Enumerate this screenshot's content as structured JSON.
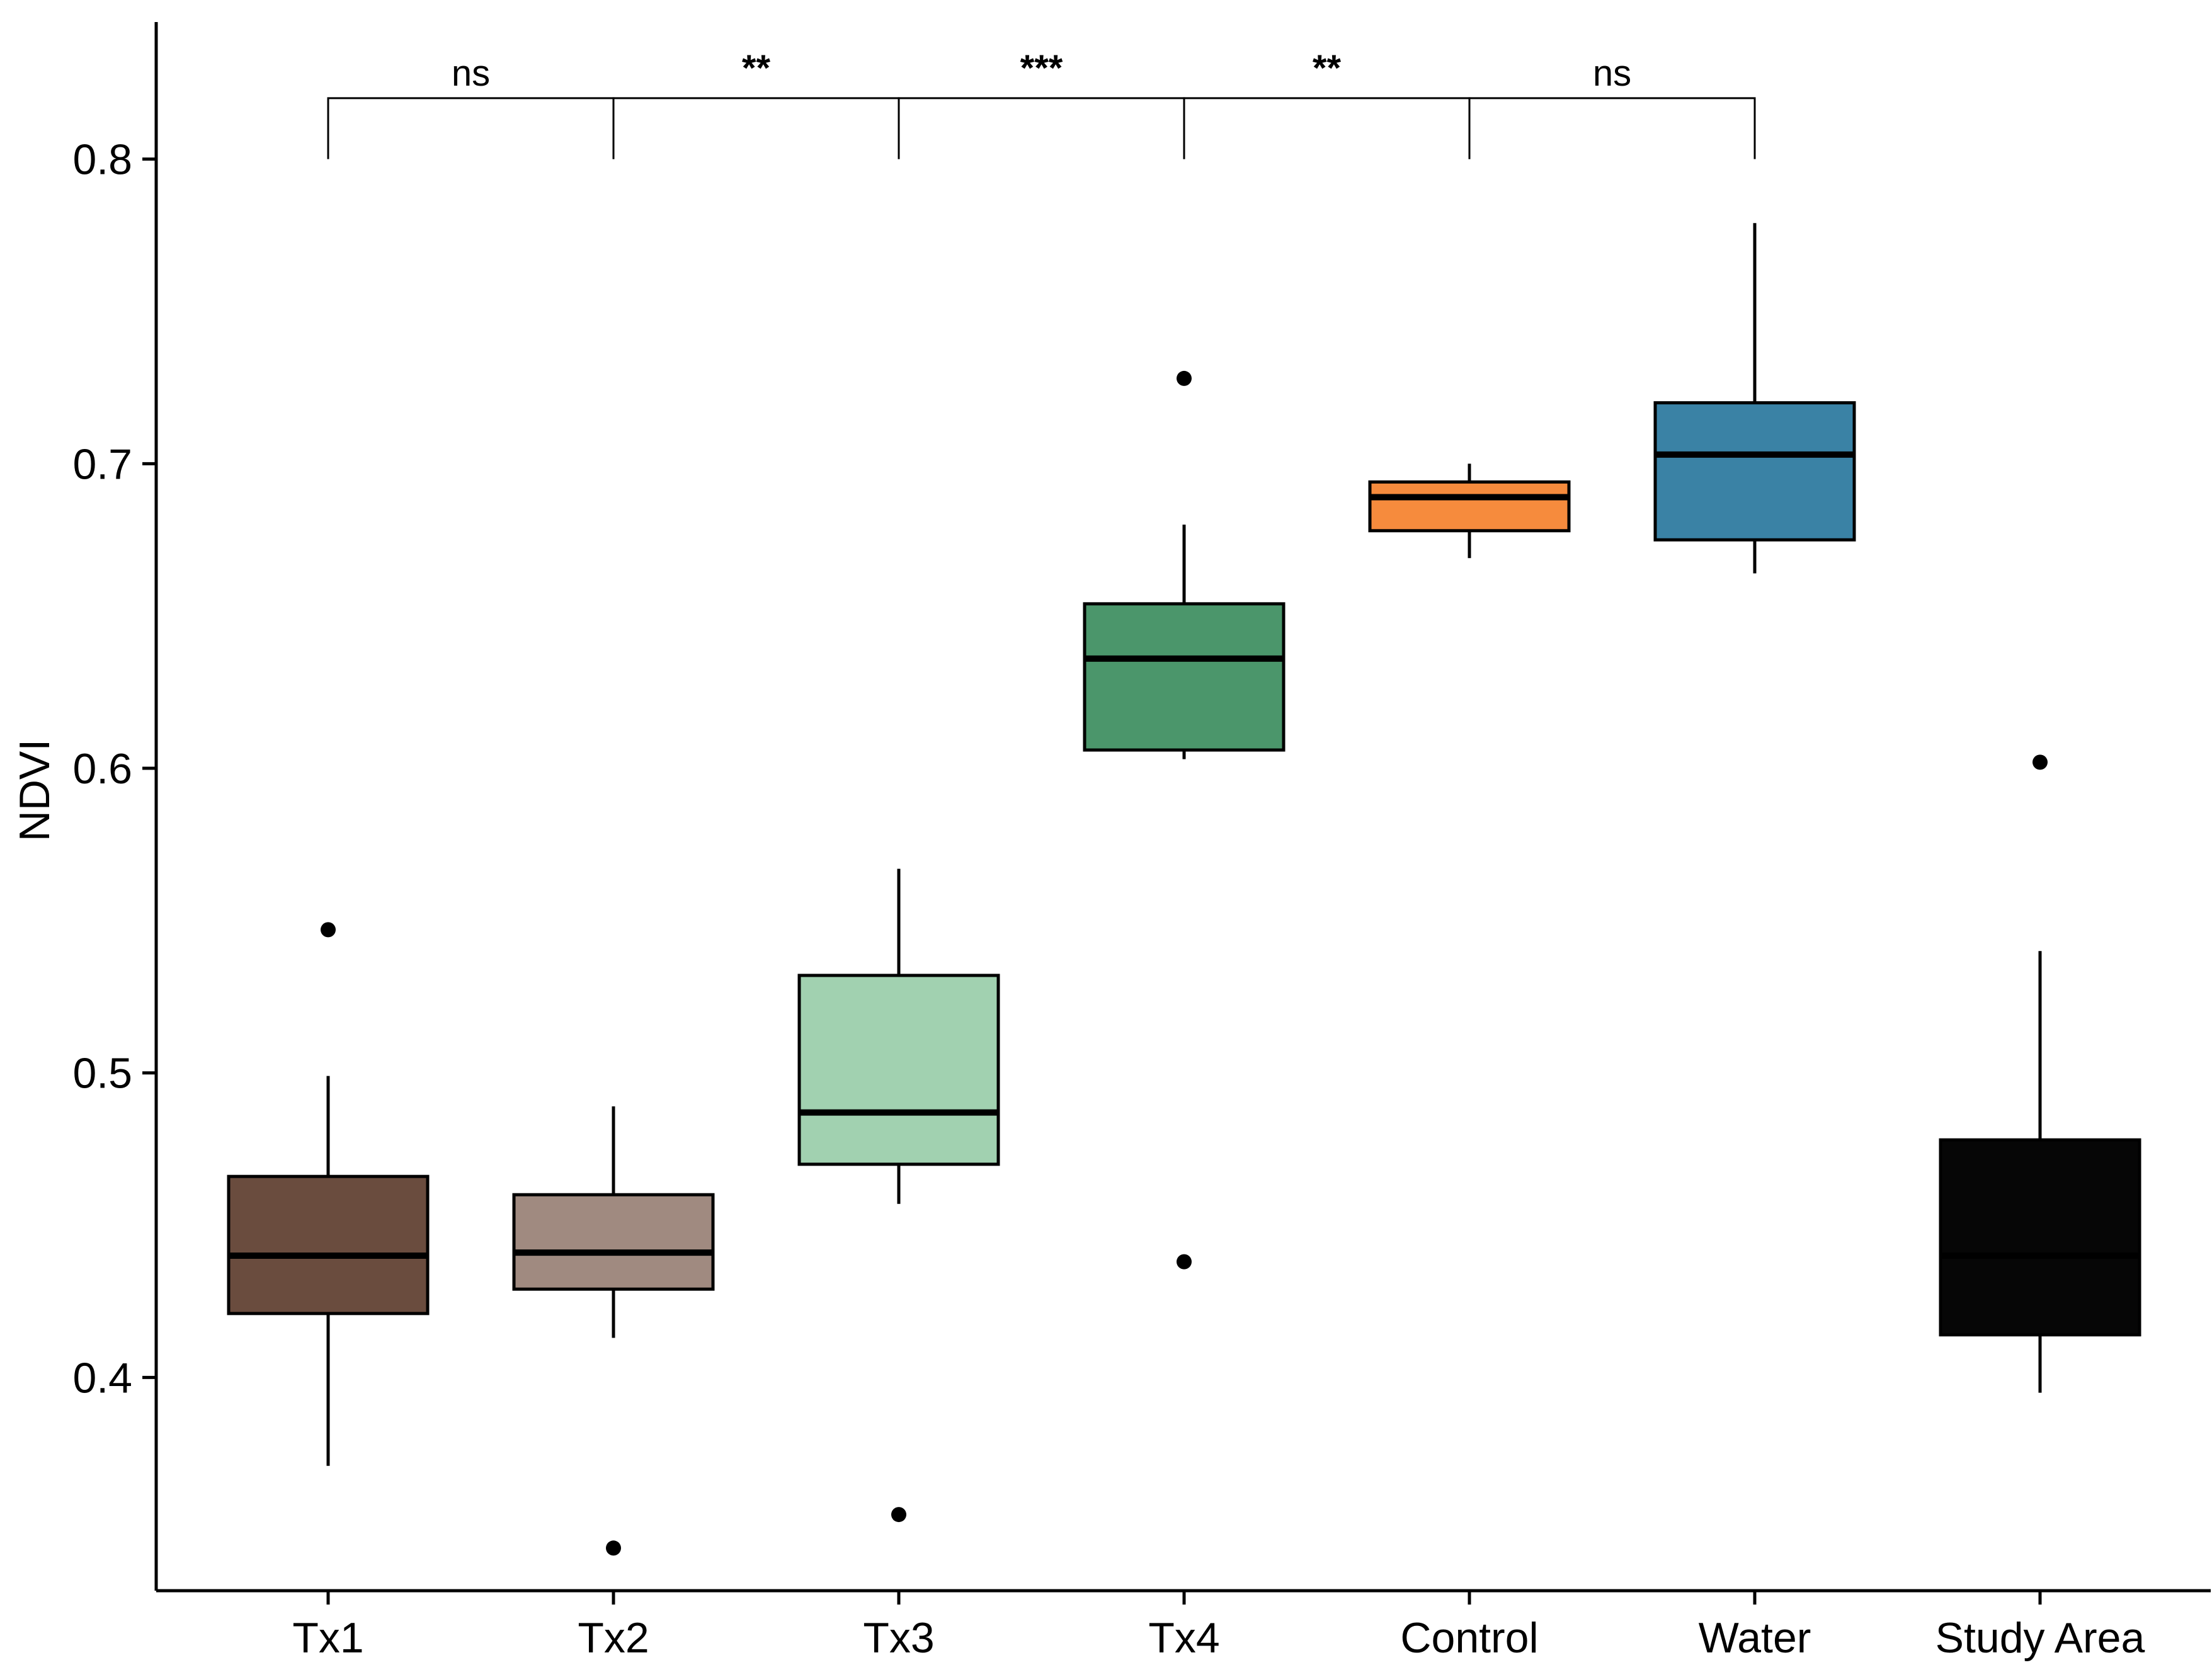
{
  "chart_data": {
    "type": "boxplot",
    "title": "",
    "xlabel": "",
    "ylabel": "NDVI",
    "ylim": [
      0.33,
      0.845
    ],
    "yticks": [
      0.4,
      0.5,
      0.6,
      0.7,
      0.8
    ],
    "ytick_labels": [
      "0.4",
      "0.5",
      "0.6",
      "0.7",
      "0.8"
    ],
    "grid": false,
    "legend": "none",
    "categories": [
      "Tx1",
      "Tx2",
      "Tx3",
      "Tx4",
      "Control",
      "Water",
      "Study Area"
    ],
    "boxes": [
      {
        "name": "Tx1",
        "color": "#6A4C3E",
        "whisker_low": 0.371,
        "q1": 0.421,
        "median": 0.44,
        "q3": 0.466,
        "whisker_high": 0.499,
        "outliers": [
          0.547
        ]
      },
      {
        "name": "Tx2",
        "color": "#A08A80",
        "whisker_low": 0.413,
        "q1": 0.429,
        "median": 0.441,
        "q3": 0.46,
        "whisker_high": 0.489,
        "outliers": [
          0.344
        ]
      },
      {
        "name": "Tx3",
        "color": "#A1D1B0",
        "whisker_low": 0.457,
        "q1": 0.47,
        "median": 0.487,
        "q3": 0.532,
        "whisker_high": 0.567,
        "outliers": [
          0.355
        ]
      },
      {
        "name": "Tx4",
        "color": "#4B966B",
        "whisker_low": 0.603,
        "q1": 0.606,
        "median": 0.636,
        "q3": 0.654,
        "whisker_high": 0.68,
        "outliers": [
          0.728,
          0.438
        ]
      },
      {
        "name": "Control",
        "color": "#F68B3D",
        "whisker_low": 0.669,
        "q1": 0.678,
        "median": 0.689,
        "q3": 0.694,
        "whisker_high": 0.7,
        "outliers": []
      },
      {
        "name": "Water",
        "color": "#3A82A5",
        "whisker_low": 0.664,
        "q1": 0.675,
        "median": 0.703,
        "q3": 0.72,
        "whisker_high": 0.779,
        "outliers": []
      },
      {
        "name": "Study Area",
        "color": "#060606",
        "whisker_low": 0.395,
        "q1": 0.414,
        "median": 0.44,
        "q3": 0.478,
        "whisker_high": 0.54,
        "outliers": [
          0.602
        ]
      }
    ],
    "significance": [
      {
        "from": "Tx1",
        "to": "Tx2",
        "label": "ns"
      },
      {
        "from": "Tx2",
        "to": "Tx3",
        "label": "**"
      },
      {
        "from": "Tx3",
        "to": "Tx4",
        "label": "***"
      },
      {
        "from": "Tx4",
        "to": "Control",
        "label": "**"
      },
      {
        "from": "Control",
        "to": "Water",
        "label": "ns"
      }
    ],
    "significance_bracket_level": 0.82,
    "significance_tick_bottom": 0.8
  }
}
